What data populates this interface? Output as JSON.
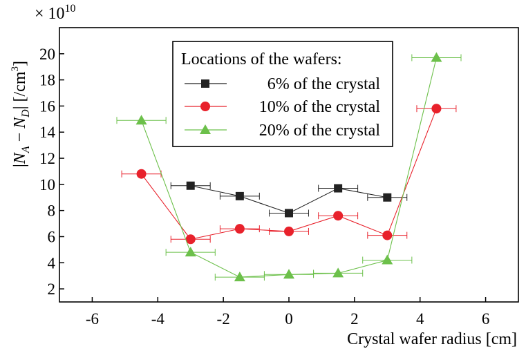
{
  "chart_data": {
    "type": "scatter",
    "x_label": "Crystal wafer radius [cm]",
    "y_label": "|N_A − N_D| [/cm³]",
    "y_label_parts": {
      "open": "|",
      "n": "N",
      "sub_a": "A",
      "minus": " − ",
      "sub_d": "D",
      "close": "| [/cm",
      "sup": "3",
      "end": "]"
    },
    "multiplier": {
      "prefix": "× 10",
      "exponent": "10"
    },
    "x_range": [
      -7,
      7
    ],
    "y_range": [
      1,
      22
    ],
    "x_ticks": [
      -6,
      -4,
      -2,
      0,
      2,
      4,
      6
    ],
    "y_ticks": [
      2,
      4,
      6,
      8,
      10,
      12,
      14,
      16,
      18,
      20
    ],
    "legend": {
      "title": "Locations of the wafers:",
      "position": "top-center"
    },
    "series": [
      {
        "name": "6% of the crystal",
        "color": "#222222",
        "marker": "square",
        "points": [
          {
            "x": -3.0,
            "y": 9.9,
            "xerr": 0.6
          },
          {
            "x": -1.5,
            "y": 9.1,
            "xerr": 0.6
          },
          {
            "x": 0.0,
            "y": 7.8,
            "xerr": 0.6
          },
          {
            "x": 1.5,
            "y": 9.7,
            "xerr": 0.6
          },
          {
            "x": 3.0,
            "y": 9.0,
            "xerr": 0.6
          }
        ]
      },
      {
        "name": "10% of the crystal",
        "color": "#e8212b",
        "marker": "circle",
        "points": [
          {
            "x": -4.5,
            "y": 10.8,
            "xerr": 0.6
          },
          {
            "x": -3.0,
            "y": 5.8,
            "xerr": 0.6
          },
          {
            "x": -1.5,
            "y": 6.6,
            "xerr": 0.6
          },
          {
            "x": 0.0,
            "y": 6.4,
            "xerr": 0.6
          },
          {
            "x": 1.5,
            "y": 7.6,
            "xerr": 0.6
          },
          {
            "x": 3.0,
            "y": 6.1,
            "xerr": 0.6
          },
          {
            "x": 4.5,
            "y": 15.8,
            "xerr": 0.6
          }
        ]
      },
      {
        "name": "20% of the crystal",
        "color": "#6cc04a",
        "marker": "triangle",
        "points": [
          {
            "x": -4.5,
            "y": 14.9,
            "xerr": 0.75
          },
          {
            "x": -3.0,
            "y": 4.8,
            "xerr": 0.75
          },
          {
            "x": -1.5,
            "y": 2.9,
            "xerr": 0.75
          },
          {
            "x": 0.0,
            "y": 3.1,
            "xerr": 0.75
          },
          {
            "x": 1.5,
            "y": 3.2,
            "xerr": 0.75
          },
          {
            "x": 3.0,
            "y": 4.2,
            "xerr": 0.75
          },
          {
            "x": 4.5,
            "y": 19.7,
            "xerr": 0.75
          }
        ]
      }
    ]
  }
}
